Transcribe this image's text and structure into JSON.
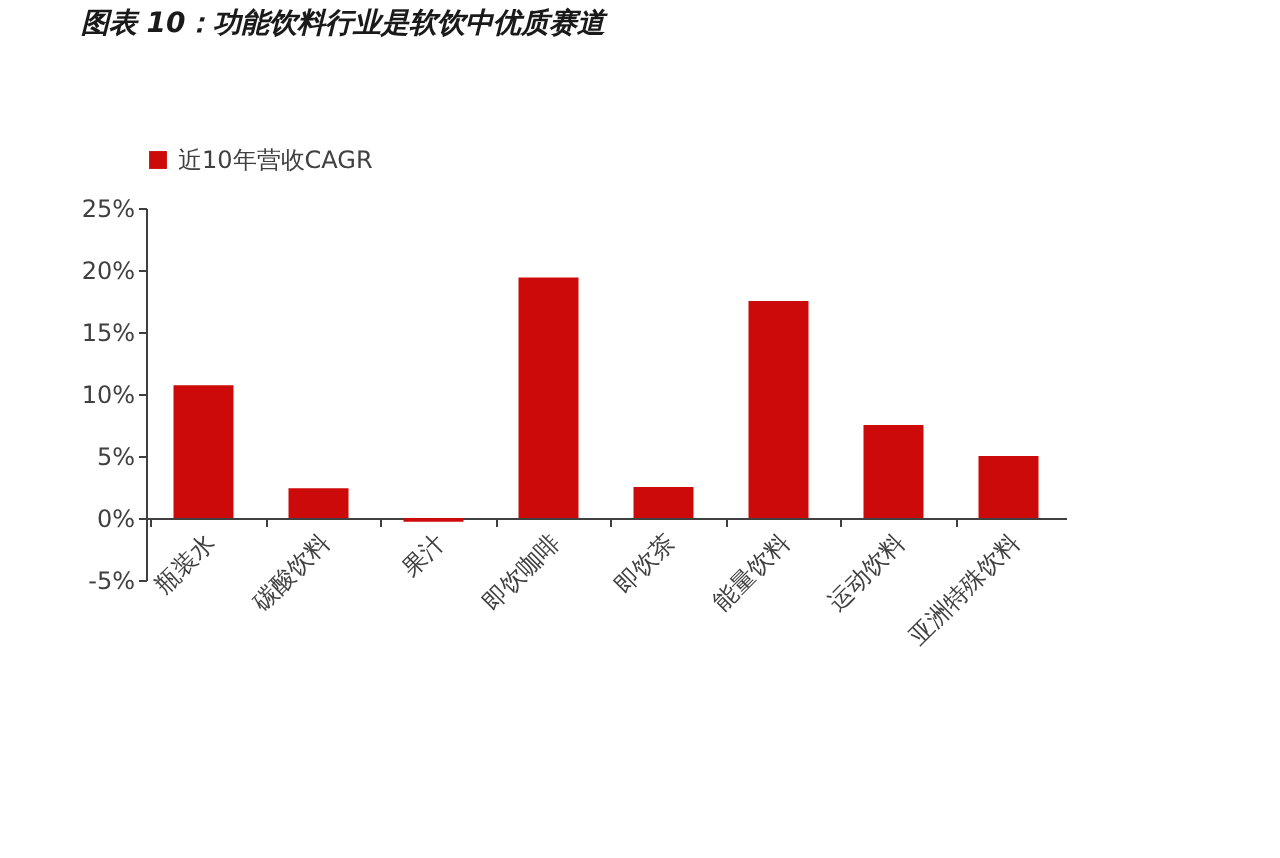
{
  "chart_data": {
    "type": "bar",
    "title": "图表 10：功能饮料行业是软饮中优质赛道",
    "categories": [
      "瓶装水",
      "碳酸饮料",
      "果汁",
      "即饮咖啡",
      "即饮茶",
      "能量饮料",
      "运动饮料",
      "亚洲特殊饮料"
    ],
    "series": [
      {
        "name": "近10年营收CAGR",
        "color": "#cc0a0a",
        "values": [
          10.7,
          2.4,
          -0.3,
          19.4,
          2.5,
          17.5,
          7.5,
          5.0
        ]
      }
    ],
    "ylim": [
      -5,
      25
    ],
    "yticks": [
      {
        "value": -5,
        "label": "-5%"
      },
      {
        "value": 0,
        "label": "0%"
      },
      {
        "value": 5,
        "label": "5%"
      },
      {
        "value": 10,
        "label": "10%"
      },
      {
        "value": 15,
        "label": "15%"
      },
      {
        "value": 20,
        "label": "20%"
      },
      {
        "value": 25,
        "label": "25%"
      }
    ],
    "grid": false,
    "legend": "top"
  }
}
